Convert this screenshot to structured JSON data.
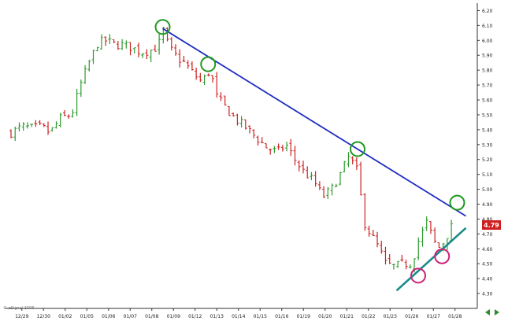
{
  "chart_data": {
    "type": "ohlc",
    "title": "",
    "xlabel": "",
    "ylabel": "",
    "ylim": [
      4.2,
      6.25
    ],
    "y_ticks": [
      "4.30",
      "4.40",
      "4.50",
      "4.60",
      "4.70",
      "4.80",
      "4.90",
      "5.00",
      "5.10",
      "5.20",
      "5.30",
      "5.40",
      "5.50",
      "5.60",
      "5.70",
      "5.80",
      "5.90",
      "6.00",
      "6.10",
      "6.20"
    ],
    "x_ticks": [
      "12/29",
      "12/30",
      "01/02",
      "01/05",
      "01/06",
      "01/07",
      "01/08",
      "01/09",
      "01/12",
      "01/13",
      "01/14",
      "01/15",
      "01/16",
      "01/19",
      "01/20",
      "01/21",
      "01/22",
      "01/23",
      "01/26",
      "01/27",
      "01/28"
    ],
    "last_price_label": "4.79",
    "copyright": "© eSignal 2008",
    "grid": false,
    "colors": {
      "up": "#2e9a2e",
      "down": "#cc2222",
      "resistance_line": "#1f2ec0",
      "support_line": "#1a8a8a",
      "resistance_marker": "#1f9a1f",
      "support_marker": "#cc2277"
    },
    "close_path": [
      {
        "t": 0,
        "price": 5.38
      },
      {
        "t": 0.5,
        "price": 5.42
      },
      {
        "t": 1.0,
        "price": 5.41
      },
      {
        "t": 1.4,
        "price": 5.42
      },
      {
        "t": 1.8,
        "price": 5.38
      },
      {
        "t": 2.3,
        "price": 5.48
      },
      {
        "t": 2.8,
        "price": 5.5
      },
      {
        "t": 3.2,
        "price": 5.7
      },
      {
        "t": 3.6,
        "price": 5.85
      },
      {
        "t": 4.0,
        "price": 5.98
      },
      {
        "t": 4.4,
        "price": 6.0
      },
      {
        "t": 4.8,
        "price": 5.97
      },
      {
        "t": 5.2,
        "price": 5.97
      },
      {
        "t": 5.6,
        "price": 5.95
      },
      {
        "t": 6.0,
        "price": 5.92
      },
      {
        "t": 6.4,
        "price": 5.93
      },
      {
        "t": 6.8,
        "price": 5.96
      },
      {
        "t": 7.0,
        "price": 6.08
      },
      {
        "t": 7.3,
        "price": 5.95
      },
      {
        "t": 7.7,
        "price": 5.88
      },
      {
        "t": 8.0,
        "price": 5.85
      },
      {
        "t": 8.4,
        "price": 5.78
      },
      {
        "t": 8.8,
        "price": 5.72
      },
      {
        "t": 9.2,
        "price": 5.8
      },
      {
        "t": 9.5,
        "price": 5.62
      },
      {
        "t": 9.9,
        "price": 5.55
      },
      {
        "t": 10.3,
        "price": 5.48
      },
      {
        "t": 10.8,
        "price": 5.42
      },
      {
        "t": 11.3,
        "price": 5.35
      },
      {
        "t": 11.8,
        "price": 5.28
      },
      {
        "t": 12.3,
        "price": 5.25
      },
      {
        "t": 12.7,
        "price": 5.3
      },
      {
        "t": 13.1,
        "price": 5.2
      },
      {
        "t": 13.5,
        "price": 5.12
      },
      {
        "t": 14.0,
        "price": 5.05
      },
      {
        "t": 14.4,
        "price": 4.95
      },
      {
        "t": 14.8,
        "price": 5.0
      },
      {
        "t": 15.2,
        "price": 5.1
      },
      {
        "t": 15.6,
        "price": 5.22
      },
      {
        "t": 16.0,
        "price": 5.12
      },
      {
        "t": 16.3,
        "price": 4.78
      },
      {
        "t": 16.6,
        "price": 4.7
      },
      {
        "t": 17.0,
        "price": 4.6
      },
      {
        "t": 17.3,
        "price": 4.5
      },
      {
        "t": 17.7,
        "price": 4.48
      },
      {
        "t": 18.1,
        "price": 4.5
      },
      {
        "t": 18.5,
        "price": 4.5
      },
      {
        "t": 18.8,
        "price": 4.65
      },
      {
        "t": 19.2,
        "price": 4.78
      },
      {
        "t": 19.4,
        "price": 4.7
      },
      {
        "t": 19.7,
        "price": 4.6
      },
      {
        "t": 20.0,
        "price": 4.65
      },
      {
        "t": 20.3,
        "price": 4.74
      },
      {
        "t": 20.5,
        "price": 4.78
      }
    ],
    "trendlines": [
      {
        "name": "resistance",
        "from": {
          "t": 7.0,
          "price": 6.08
        },
        "to": {
          "t": 21.0,
          "price": 4.82
        }
      },
      {
        "name": "support",
        "from": {
          "t": 17.8,
          "price": 4.32
        },
        "to": {
          "t": 21.0,
          "price": 4.74
        }
      }
    ],
    "markers": [
      {
        "kind": "resistance_touch",
        "t": 7.0,
        "price": 6.09
      },
      {
        "kind": "resistance_touch",
        "t": 9.1,
        "price": 5.84
      },
      {
        "kind": "resistance_touch",
        "t": 16.0,
        "price": 5.27
      },
      {
        "kind": "resistance_touch",
        "t": 20.6,
        "price": 4.91
      },
      {
        "kind": "support_touch",
        "t": 18.8,
        "price": 4.42
      },
      {
        "kind": "support_touch",
        "t": 19.9,
        "price": 4.55
      }
    ]
  }
}
